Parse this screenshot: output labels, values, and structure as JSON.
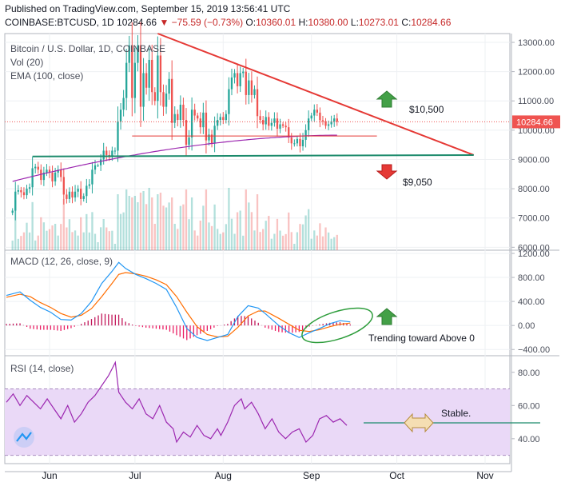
{
  "header": {
    "published": "Published on TradingView.com, September 15, 2019 13:56:41 UTC",
    "symbol": "COINBASE:BTCUSD, 1D",
    "last": "10284.66",
    "change": "▼ −75.59 (−0.73%)",
    "o_label": "O:",
    "o_value": "10360.01",
    "h_label": "H:",
    "h_value": "10380.00",
    "l_label": "L:",
    "l_value": "10273.01",
    "c_label": "C:",
    "c_value": "10284.66"
  },
  "panes": {
    "price_title": "Bitcoin / U.S. Dollar, 1D, COINBASE",
    "volume_label": "Vol (20)",
    "ema_label": "EMA (100, close)",
    "macd_label": "MACD (12, 26, close, 9)",
    "rsi_label": "RSI (14, close)"
  },
  "annotations": {
    "resistance_price": "$10,500",
    "support_price": "$9,050",
    "macd_note": "Trending toward Above 0",
    "rsi_note": "Stable.",
    "last_price_tag": "10284.66"
  },
  "colors": {
    "up": "#26a69a",
    "down": "#ef5350",
    "trend_red": "#e53935",
    "trend_green": "#1b8a6b",
    "ema": "#9c27b0",
    "macd": "#2196f3",
    "signal": "#ff6d00",
    "rsi": "#9c27b0",
    "rsi_band": "#ead9f7",
    "arrow_up": "#43a047",
    "arrow_down": "#e53935",
    "arrow_side": "#f5deb3"
  },
  "chart_data": [
    {
      "type": "candlestick",
      "title": "Bitcoin / U.S. Dollar, 1D, COINBASE",
      "x_ticks": [
        "Jun",
        "Jul",
        "Aug",
        "Sep",
        "Oct",
        "Nov"
      ],
      "y_ticks": [
        6000,
        7000,
        8000,
        9000,
        10000,
        11000,
        12000,
        13000
      ],
      "ylim": [
        5900,
        13300
      ],
      "last_price": 10284.66,
      "close_series_start": "2019-05-19",
      "close": [
        7250,
        7900,
        7950,
        7880,
        7780,
        8000,
        8050,
        8700,
        8750,
        8650,
        8300,
        8550,
        8650,
        8550,
        8250,
        8550,
        8650,
        8400,
        7800,
        7650,
        7900,
        7700,
        7900,
        8000,
        7650,
        7750,
        8100,
        8150,
        8650,
        8800,
        8800,
        9000,
        9300,
        9150,
        9080,
        9300,
        9300,
        10300,
        10700,
        11100,
        12300,
        12900,
        11100,
        12300,
        12900,
        10800,
        11950,
        11450,
        12400,
        11300,
        11000,
        12550,
        11300,
        10800,
        11250,
        11750,
        10250,
        10550,
        10350,
        10870,
        10350,
        9500,
        9750,
        10700,
        10500,
        10400,
        10100,
        10600,
        9650,
        9850,
        9560,
        10150,
        10350,
        10450,
        10350,
        10550,
        11400,
        11800,
        11950,
        11500,
        11950,
        12000,
        11200,
        11700,
        11200,
        11400,
        10480,
        10350,
        10200,
        10450,
        10150,
        10250,
        10400,
        10050,
        10200,
        10150,
        10100,
        9750,
        9550,
        9550,
        9700,
        9450,
        9670,
        10000,
        10400,
        10500,
        10700,
        10600,
        10340,
        10300,
        10150,
        10200,
        10300,
        10400,
        10290
      ],
      "ema100": {
        "start": 8250,
        "end": 9830
      },
      "trendlines": [
        {
          "name": "descending resistance",
          "from": [
            "2019-07-09",
            13300
          ],
          "to": [
            "2019-10-28",
            9150
          ]
        },
        {
          "name": "horizontal support",
          "from": [
            "2019-05-26",
            9100
          ],
          "to": [
            "2019-10-28",
            9150
          ]
        },
        {
          "name": "range mid",
          "from": [
            "2019-06-30",
            9800
          ],
          "to": [
            "2019-09-24",
            9800
          ]
        }
      ],
      "annotations": [
        "$10,500",
        "$9,050"
      ]
    },
    {
      "type": "bar",
      "title": "Vol (20)",
      "note": "volume bars in lower part of price pane, scale not labeled"
    },
    {
      "type": "line",
      "title": "MACD (12, 26, close, 9)",
      "y_ticks": [
        -400,
        0,
        400,
        800,
        1200
      ],
      "ylim": [
        -450,
        1200
      ],
      "macd_points": [
        [
          0,
          500
        ],
        [
          8,
          560
        ],
        [
          14,
          420
        ],
        [
          20,
          300
        ],
        [
          26,
          220
        ],
        [
          32,
          100
        ],
        [
          38,
          90
        ],
        [
          44,
          200
        ],
        [
          50,
          400
        ],
        [
          56,
          700
        ],
        [
          62,
          900
        ],
        [
          66,
          1050
        ],
        [
          70,
          950
        ],
        [
          76,
          850
        ],
        [
          82,
          780
        ],
        [
          88,
          700
        ],
        [
          94,
          600
        ],
        [
          100,
          300
        ],
        [
          106,
          -50
        ],
        [
          112,
          -200
        ],
        [
          118,
          -250
        ],
        [
          124,
          -200
        ],
        [
          130,
          -150
        ],
        [
          136,
          150
        ],
        [
          142,
          330
        ],
        [
          148,
          290
        ],
        [
          152,
          200
        ],
        [
          160,
          0
        ],
        [
          166,
          -120
        ],
        [
          172,
          -200
        ],
        [
          178,
          -120
        ],
        [
          184,
          -50
        ],
        [
          190,
          30
        ],
        [
          196,
          80
        ],
        [
          202,
          60
        ]
      ],
      "signal_points": [
        [
          0,
          470
        ],
        [
          8,
          520
        ],
        [
          14,
          480
        ],
        [
          20,
          380
        ],
        [
          26,
          300
        ],
        [
          32,
          200
        ],
        [
          38,
          140
        ],
        [
          44,
          170
        ],
        [
          50,
          280
        ],
        [
          56,
          480
        ],
        [
          62,
          700
        ],
        [
          66,
          850
        ],
        [
          70,
          880
        ],
        [
          76,
          860
        ],
        [
          82,
          820
        ],
        [
          88,
          760
        ],
        [
          94,
          680
        ],
        [
          100,
          480
        ],
        [
          106,
          220
        ],
        [
          112,
          -20
        ],
        [
          118,
          -150
        ],
        [
          124,
          -190
        ],
        [
          130,
          -180
        ],
        [
          136,
          -30
        ],
        [
          142,
          160
        ],
        [
          148,
          240
        ],
        [
          152,
          240
        ],
        [
          160,
          120
        ],
        [
          166,
          20
        ],
        [
          172,
          -80
        ],
        [
          178,
          -100
        ],
        [
          184,
          -70
        ],
        [
          190,
          -20
        ],
        [
          196,
          20
        ],
        [
          202,
          40
        ]
      ],
      "annotation": "Trending toward Above 0"
    },
    {
      "type": "line",
      "title": "RSI (14, close)",
      "y_ticks": [
        40,
        60,
        80
      ],
      "ylim": [
        25,
        90
      ],
      "band": [
        30,
        70
      ],
      "rsi_points": [
        [
          0,
          62
        ],
        [
          4,
          67
        ],
        [
          8,
          60
        ],
        [
          12,
          66
        ],
        [
          16,
          62
        ],
        [
          20,
          58
        ],
        [
          24,
          64
        ],
        [
          28,
          58
        ],
        [
          32,
          52
        ],
        [
          36,
          60
        ],
        [
          40,
          50
        ],
        [
          44,
          55
        ],
        [
          48,
          62
        ],
        [
          52,
          66
        ],
        [
          56,
          72
        ],
        [
          60,
          78
        ],
        [
          62,
          82
        ],
        [
          64,
          86
        ],
        [
          66,
          68
        ],
        [
          70,
          62
        ],
        [
          74,
          58
        ],
        [
          78,
          64
        ],
        [
          82,
          55
        ],
        [
          86,
          52
        ],
        [
          90,
          60
        ],
        [
          94,
          50
        ],
        [
          98,
          46
        ],
        [
          100,
          38
        ],
        [
          104,
          44
        ],
        [
          108,
          41
        ],
        [
          112,
          48
        ],
        [
          116,
          42
        ],
        [
          120,
          40
        ],
        [
          124,
          46
        ],
        [
          126,
          42
        ],
        [
          130,
          50
        ],
        [
          134,
          60
        ],
        [
          138,
          64
        ],
        [
          140,
          58
        ],
        [
          144,
          62
        ],
        [
          148,
          55
        ],
        [
          152,
          46
        ],
        [
          156,
          52
        ],
        [
          160,
          44
        ],
        [
          164,
          40
        ],
        [
          168,
          44
        ],
        [
          172,
          46
        ],
        [
          176,
          38
        ],
        [
          180,
          42
        ],
        [
          184,
          52
        ],
        [
          188,
          54
        ],
        [
          192,
          50
        ],
        [
          196,
          52
        ],
        [
          200,
          48
        ]
      ],
      "annotation": "Stable."
    }
  ]
}
